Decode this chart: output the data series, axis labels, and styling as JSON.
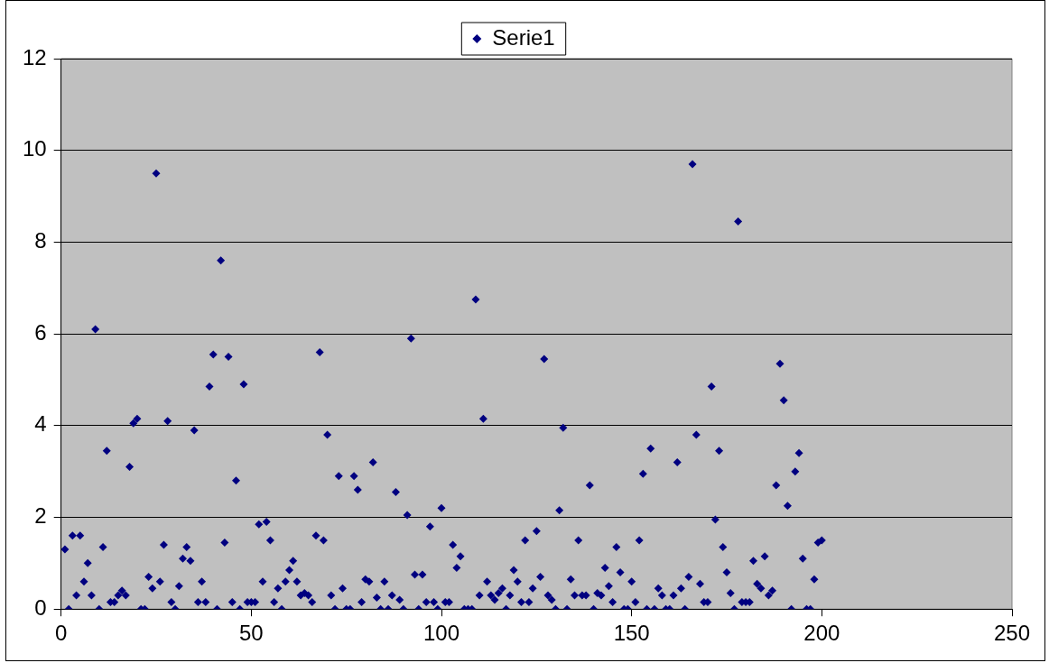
{
  "chart_data": {
    "type": "scatter",
    "legend": "top",
    "grid": "y",
    "marker": "diamond",
    "xlim": [
      0,
      250
    ],
    "xticks": [
      0,
      50,
      100,
      150,
      200,
      250
    ],
    "ylim": [
      0,
      12
    ],
    "yticks": [
      0,
      2,
      4,
      6,
      8,
      10,
      12
    ],
    "series": [
      {
        "name": "Serie1",
        "color": "#000080",
        "x": [
          1,
          2,
          3,
          4,
          5,
          6,
          7,
          8,
          9,
          10,
          11,
          12,
          13,
          14,
          15,
          16,
          17,
          18,
          19,
          20,
          21,
          22,
          23,
          24,
          25,
          26,
          27,
          28,
          29,
          30,
          31,
          32,
          33,
          34,
          35,
          36,
          37,
          38,
          39,
          40,
          41,
          42,
          43,
          44,
          45,
          46,
          47,
          48,
          49,
          50,
          51,
          52,
          53,
          54,
          55,
          56,
          57,
          58,
          59,
          60,
          61,
          62,
          63,
          64,
          65,
          66,
          67,
          68,
          69,
          70,
          71,
          72,
          73,
          74,
          75,
          76,
          77,
          78,
          79,
          80,
          81,
          82,
          83,
          84,
          85,
          86,
          87,
          88,
          89,
          90,
          91,
          92,
          93,
          94,
          95,
          96,
          97,
          98,
          99,
          100,
          101,
          102,
          103,
          104,
          105,
          106,
          107,
          108,
          109,
          110,
          111,
          112,
          113,
          114,
          115,
          116,
          117,
          118,
          119,
          120,
          121,
          122,
          123,
          124,
          125,
          126,
          127,
          128,
          129,
          130,
          131,
          132,
          133,
          134,
          135,
          136,
          137,
          138,
          139,
          140,
          141,
          142,
          143,
          144,
          145,
          146,
          147,
          148,
          149,
          150,
          151,
          152,
          153,
          154,
          155,
          156,
          157,
          158,
          159,
          160,
          161,
          162,
          163,
          164,
          165,
          166,
          167,
          168,
          169,
          170,
          171,
          172,
          173,
          174,
          175,
          176,
          177,
          178,
          179,
          180,
          181,
          182,
          183,
          184,
          185,
          186,
          187,
          188,
          189,
          190,
          191,
          192,
          193,
          194,
          195,
          196,
          197,
          198,
          199,
          200
        ],
        "values": [
          1.3,
          0,
          1.6,
          0.3,
          1.6,
          0.6,
          1.0,
          0.3,
          6.1,
          0,
          1.35,
          3.45,
          0.15,
          0.15,
          0.3,
          0.4,
          0.3,
          3.1,
          4.05,
          4.15,
          0,
          0,
          0.7,
          0.45,
          9.5,
          0.6,
          1.4,
          4.1,
          0.15,
          0,
          0.5,
          1.1,
          1.35,
          1.05,
          3.9,
          0.15,
          0.6,
          0.15,
          4.85,
          5.55,
          0,
          7.6,
          1.45,
          5.5,
          0.15,
          2.8,
          0,
          4.9,
          0.15,
          0.15,
          0.15,
          1.85,
          0.6,
          1.9,
          1.5,
          0.15,
          0.45,
          0,
          0.6,
          0.85,
          1.05,
          0.6,
          0.3,
          0.35,
          0.3,
          0.15,
          1.6,
          5.6,
          1.5,
          3.8,
          0.3,
          0,
          2.9,
          0.45,
          0,
          0,
          2.9,
          2.6,
          0.15,
          0.65,
          0.6,
          3.2,
          0.25,
          0,
          0.6,
          0,
          0.3,
          2.55,
          0.2,
          0,
          2.05,
          5.9,
          0.75,
          0,
          0.75,
          0.15,
          1.8,
          0.15,
          0,
          2.2,
          0.15,
          0.15,
          1.4,
          0.9,
          1.15,
          0,
          0,
          0,
          6.75,
          0.3,
          4.15,
          0.6,
          0.3,
          0.2,
          0.35,
          0.45,
          0,
          0.3,
          0.85,
          0.6,
          0.15,
          1.5,
          0.15,
          0.45,
          1.7,
          0.7,
          5.45,
          0.3,
          0.2,
          0,
          2.15,
          3.95,
          0,
          0.65,
          0.3,
          1.5,
          0.3,
          0.3,
          2.7,
          0,
          0.35,
          0.3,
          0.9,
          0.5,
          0.15,
          1.35,
          0.8,
          0,
          0,
          0.6,
          0.15,
          1.5,
          2.95,
          0,
          3.5,
          0,
          0.45,
          0.3,
          0,
          0,
          0.3,
          3.2,
          0.45,
          0,
          0.7,
          9.7,
          3.8,
          0.55,
          0.15,
          0.15,
          4.85,
          1.95,
          3.45,
          1.35,
          0.8,
          0.35,
          0,
          8.45,
          0.15,
          0.15,
          0.15,
          1.05,
          0.55,
          0.45,
          1.15,
          0.3,
          0.4,
          2.7,
          5.35,
          4.55,
          2.25,
          0,
          3.0,
          3.4,
          1.1,
          0,
          0,
          0.65,
          1.45,
          1.5
        ]
      }
    ]
  }
}
